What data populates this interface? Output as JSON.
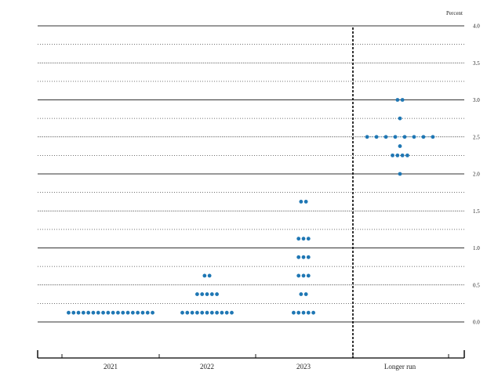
{
  "chart_data": {
    "type": "scatter",
    "ylabel": "Percent",
    "ylim": [
      0,
      4.0
    ],
    "y_ticks": [
      "0.0",
      "0.5",
      "1.0",
      "1.5",
      "2.0",
      "2.5",
      "3.0",
      "3.5",
      "4.0"
    ],
    "categories": [
      "2021",
      "2022",
      "2023",
      "Longer run"
    ],
    "grid": true,
    "dot_color": "#1f77b4",
    "series": [
      {
        "category": "2021",
        "points": [
          {
            "y": 0.125,
            "count": 18
          }
        ]
      },
      {
        "category": "2022",
        "points": [
          {
            "y": 0.125,
            "count": 11
          },
          {
            "y": 0.375,
            "count": 5
          },
          {
            "y": 0.625,
            "count": 2
          }
        ]
      },
      {
        "category": "2023",
        "points": [
          {
            "y": 0.125,
            "count": 5
          },
          {
            "y": 0.375,
            "count": 2
          },
          {
            "y": 0.625,
            "count": 3
          },
          {
            "y": 0.875,
            "count": 3
          },
          {
            "y": 1.125,
            "count": 3
          },
          {
            "y": 1.625,
            "count": 2
          }
        ]
      },
      {
        "category": "Longer run",
        "points": [
          {
            "y": 2.0,
            "count": 1
          },
          {
            "y": 2.25,
            "count": 4
          },
          {
            "y": 2.375,
            "count": 1
          },
          {
            "y": 2.5,
            "count": 8
          },
          {
            "y": 2.75,
            "count": 1
          },
          {
            "y": 3.0,
            "count": 2
          }
        ]
      }
    ]
  }
}
